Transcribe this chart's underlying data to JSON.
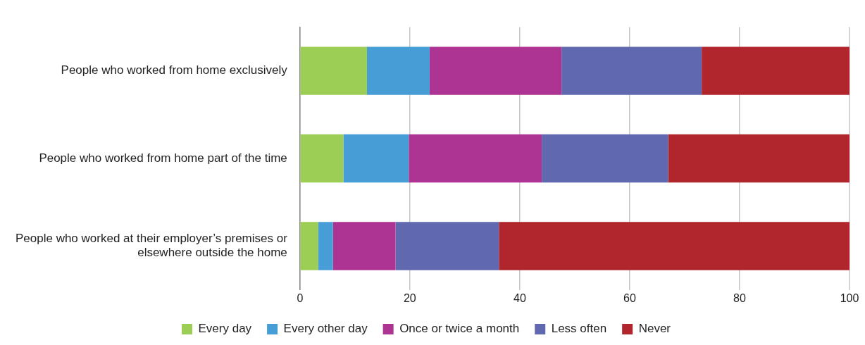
{
  "chart_data": {
    "type": "bar",
    "orientation": "horizontal",
    "stacked": true,
    "categories": [
      "People who worked from home exclusively",
      "People who worked from home part of the time",
      "People who worked at their employer’s premises or elsewhere outside the home"
    ],
    "series": [
      {
        "name": "Every day",
        "color": "#9ccd55",
        "values": [
          12.2,
          7.9,
          3.3
        ]
      },
      {
        "name": "Every other day",
        "color": "#479dd6",
        "values": [
          11.4,
          11.9,
          2.7
        ]
      },
      {
        "name": "Once or twice a month",
        "color": "#ae3493",
        "values": [
          24.0,
          24.2,
          11.4
        ]
      },
      {
        "name": "Less often",
        "color": "#6069b0",
        "values": [
          25.5,
          23.0,
          18.8
        ]
      },
      {
        "name": "Never",
        "color": "#b0262c",
        "values": [
          26.9,
          33.0,
          63.8
        ]
      }
    ],
    "xlim": [
      0,
      100
    ],
    "xticks": [
      0,
      20,
      40,
      60,
      80,
      100
    ],
    "grid": "x",
    "legend": "bottom"
  }
}
